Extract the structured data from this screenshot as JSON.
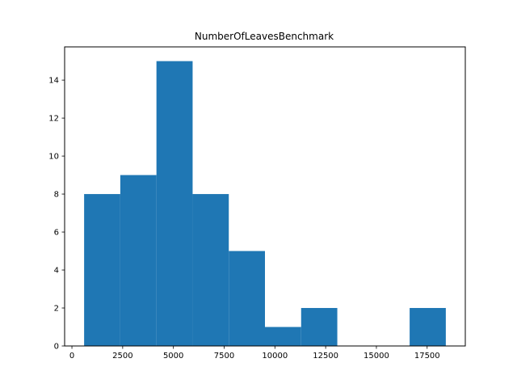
{
  "chart_data": {
    "type": "bar",
    "title": "NumberOfLeavesBenchmark",
    "xlabel": "",
    "ylabel": "",
    "bar_color": "#1f77b4",
    "bin_edges": [
      600,
      1390,
      2180,
      2970,
      3760,
      4550,
      5340,
      6130,
      6920,
      7710,
      8500,
      9290,
      10080,
      10870,
      11660,
      12450,
      13240,
      14030,
      14820,
      15610,
      16400,
      17190,
      17980,
      18500
    ],
    "bins": [
      {
        "start": 600,
        "end": 2382,
        "count": 8
      },
      {
        "start": 2382,
        "end": 4164,
        "count": 9
      },
      {
        "start": 4164,
        "end": 5946,
        "count": 15
      },
      {
        "start": 5946,
        "end": 7728,
        "count": 8
      },
      {
        "start": 7728,
        "end": 9510,
        "count": 5
      },
      {
        "start": 9510,
        "end": 11292,
        "count": 1
      },
      {
        "start": 11292,
        "end": 13074,
        "count": 2
      },
      {
        "start": 13074,
        "end": 14856,
        "count": 0
      },
      {
        "start": 14856,
        "end": 16638,
        "count": 0
      },
      {
        "start": 16638,
        "end": 18420,
        "count": 2
      }
    ],
    "xlim": [
      -360,
      19380
    ],
    "ylim": [
      0,
      15.75
    ],
    "xticks": [
      0,
      2500,
      5000,
      7500,
      10000,
      12500,
      15000,
      17500
    ],
    "yticks": [
      0,
      2,
      4,
      6,
      8,
      10,
      12,
      14
    ],
    "grid": false
  }
}
